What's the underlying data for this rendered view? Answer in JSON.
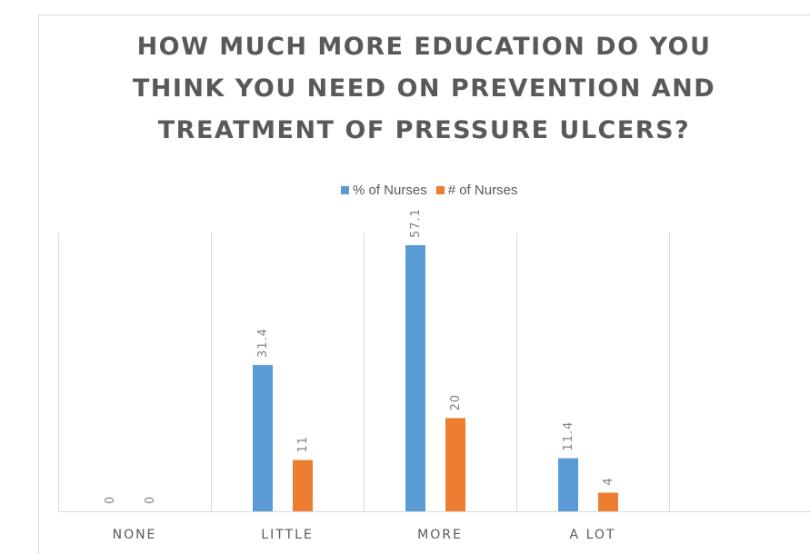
{
  "chart_data": {
    "type": "bar",
    "title_lines": [
      "HOW MUCH MORE EDUCATION DO YOU",
      "THINK YOU NEED ON PREVENTION AND",
      "TREATMENT OF PRESSURE ULCERS?"
    ],
    "categories": [
      "NONE",
      "LITTLE",
      "MORE",
      "A LOT"
    ],
    "series": [
      {
        "name": "% of Nurses",
        "values": [
          0,
          31.4,
          57.1,
          11.4
        ],
        "labels": [
          "0",
          "31.4",
          "57.1",
          "11.4"
        ],
        "color": "#5b9bd5"
      },
      {
        "name": "# of Nurses",
        "values": [
          0,
          11,
          20,
          4
        ],
        "labels": [
          "0",
          "11",
          "20",
          "4"
        ],
        "color": "#ed7d31"
      }
    ],
    "ylim": [
      0,
      60
    ],
    "grid": "vertical category separators",
    "legend_position": "top"
  }
}
